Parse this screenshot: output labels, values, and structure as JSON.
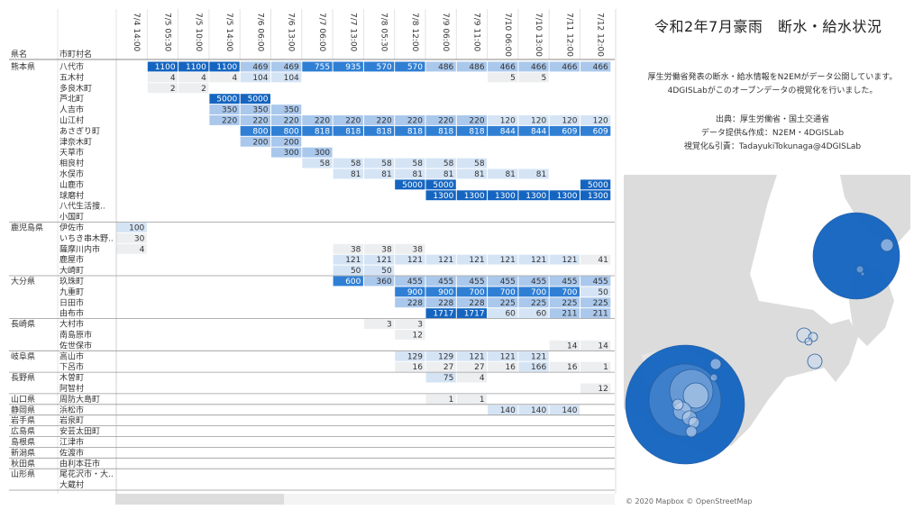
{
  "title": "令和2年7月豪雨　断水・給水状況",
  "description": [
    "厚生労働省発表の断水・給水情報をN2EMがデータ公開しています。",
    "4DGISLabがこのオープンデータの視覚化を行いました。"
  ],
  "credits": [
    "出典：厚生労働省・国土交通省",
    "データ提供&作成：N2EM・4DGISLab",
    "視覚化&引責：TadayukiTokunaga@4DGISLab"
  ],
  "map_attribution": "© 2020 Mapbox  © OpenStreetMap",
  "colors": {
    "dark": "#1565c0",
    "mid": "#2f7fd4",
    "light": "#aac8ec",
    "lighter": "#d5e4f5",
    "lightest": "#eceef0",
    "ocean": "#ffffff",
    "land": "#dcdcdc",
    "bubble": "#1565c0"
  },
  "chart_data": {
    "type": "table",
    "row_header": "県名",
    "col_header": "市町村名",
    "columns": [
      "7/4 14:00",
      "7/5 05:30",
      "7/5 10:00",
      "7/5 14:00",
      "7/6 06:00",
      "7/6 13:00",
      "7/7 06:00",
      "7/7 13:00",
      "7/8 05:30",
      "7/8 12:00",
      "7/9 06:00",
      "7/9 11:00",
      "7/10 06:00",
      "7/10 13:00",
      "7/11 12:00",
      "7/12 12:00"
    ],
    "groups": [
      {
        "pref": "熊本県",
        "rows": [
          {
            "name": "八代市",
            "v": [
              null,
              1100,
              1100,
              1100,
              469,
              469,
              755,
              935,
              570,
              570,
              486,
              486,
              466,
              466,
              466,
              466
            ]
          },
          {
            "name": "五木村",
            "v": [
              null,
              4,
              4,
              4,
              104,
              104,
              null,
              null,
              null,
              null,
              null,
              null,
              5,
              5,
              null,
              null
            ]
          },
          {
            "name": "多良木町",
            "v": [
              null,
              2,
              2,
              null,
              null,
              null,
              null,
              null,
              null,
              null,
              null,
              null,
              null,
              null,
              null,
              null
            ]
          },
          {
            "name": "芦北町",
            "v": [
              null,
              null,
              null,
              5000,
              5000,
              null,
              null,
              null,
              null,
              null,
              null,
              null,
              null,
              null,
              null,
              null
            ]
          },
          {
            "name": "人吉市",
            "v": [
              null,
              null,
              null,
              350,
              350,
              350,
              null,
              null,
              null,
              null,
              null,
              null,
              null,
              null,
              null,
              null
            ]
          },
          {
            "name": "山江村",
            "v": [
              null,
              null,
              null,
              220,
              220,
              220,
              220,
              220,
              220,
              220,
              220,
              220,
              120,
              120,
              120,
              120
            ]
          },
          {
            "name": "あさぎり町",
            "v": [
              null,
              null,
              null,
              null,
              800,
              800,
              818,
              818,
              818,
              818,
              818,
              818,
              844,
              844,
              609,
              609
            ]
          },
          {
            "name": "津奈木町",
            "v": [
              null,
              null,
              null,
              null,
              200,
              200,
              null,
              null,
              null,
              null,
              null,
              null,
              null,
              null,
              null,
              null
            ]
          },
          {
            "name": "天草市",
            "v": [
              null,
              null,
              null,
              null,
              null,
              300,
              300,
              null,
              null,
              null,
              null,
              null,
              null,
              null,
              null,
              null
            ]
          },
          {
            "name": "相良村",
            "v": [
              null,
              null,
              null,
              null,
              null,
              null,
              58,
              58,
              58,
              58,
              58,
              58,
              null,
              null,
              null,
              null
            ]
          },
          {
            "name": "水俣市",
            "v": [
              null,
              null,
              null,
              null,
              null,
              null,
              null,
              81,
              81,
              81,
              81,
              81,
              81,
              81,
              null,
              null
            ]
          },
          {
            "name": "山鹿市",
            "v": [
              null,
              null,
              null,
              null,
              null,
              null,
              null,
              null,
              null,
              5000,
              5000,
              null,
              null,
              null,
              null,
              5000
            ]
          },
          {
            "name": "球磨村",
            "v": [
              null,
              null,
              null,
              null,
              null,
              null,
              null,
              null,
              null,
              null,
              1300,
              1300,
              1300,
              1300,
              1300,
              1300
            ]
          },
          {
            "name": "八代生活捜..",
            "v": [
              null,
              null,
              null,
              null,
              null,
              null,
              null,
              null,
              null,
              null,
              null,
              null,
              null,
              null,
              null,
              null
            ]
          },
          {
            "name": "小国町",
            "v": [
              null,
              null,
              null,
              null,
              null,
              null,
              null,
              null,
              null,
              null,
              null,
              null,
              null,
              null,
              null,
              null
            ]
          }
        ]
      },
      {
        "pref": "鹿児島県",
        "rows": [
          {
            "name": "伊佐市",
            "v": [
              100,
              null,
              null,
              null,
              null,
              null,
              null,
              null,
              null,
              null,
              null,
              null,
              null,
              null,
              null,
              null
            ]
          },
          {
            "name": "いちき串木野..",
            "v": [
              30,
              null,
              null,
              null,
              null,
              null,
              null,
              null,
              null,
              null,
              null,
              null,
              null,
              null,
              null,
              null
            ]
          },
          {
            "name": "薩摩川内市",
            "v": [
              4,
              null,
              null,
              null,
              null,
              null,
              null,
              38,
              38,
              38,
              null,
              null,
              null,
              null,
              null,
              null
            ]
          },
          {
            "name": "鹿屋市",
            "v": [
              null,
              null,
              null,
              null,
              null,
              null,
              null,
              121,
              121,
              121,
              121,
              121,
              121,
              121,
              121,
              41
            ]
          },
          {
            "name": "大崎町",
            "v": [
              null,
              null,
              null,
              null,
              null,
              null,
              null,
              50,
              50,
              null,
              null,
              null,
              null,
              null,
              null,
              null
            ]
          }
        ]
      },
      {
        "pref": "大分県",
        "rows": [
          {
            "name": "玖珠町",
            "v": [
              null,
              null,
              null,
              null,
              null,
              null,
              null,
              600,
              360,
              455,
              455,
              455,
              455,
              455,
              455,
              455
            ]
          },
          {
            "name": "九重町",
            "v": [
              null,
              null,
              null,
              null,
              null,
              null,
              null,
              null,
              null,
              900,
              900,
              700,
              700,
              700,
              700,
              50
            ]
          },
          {
            "name": "日田市",
            "v": [
              null,
              null,
              null,
              null,
              null,
              null,
              null,
              null,
              null,
              228,
              228,
              228,
              225,
              225,
              225,
              225
            ]
          },
          {
            "name": "由布市",
            "v": [
              null,
              null,
              null,
              null,
              null,
              null,
              null,
              null,
              null,
              null,
              1717,
              1717,
              60,
              60,
              211,
              211
            ]
          }
        ]
      },
      {
        "pref": "長崎県",
        "rows": [
          {
            "name": "大村市",
            "v": [
              null,
              null,
              null,
              null,
              null,
              null,
              null,
              null,
              3,
              3,
              null,
              null,
              null,
              null,
              null,
              null
            ]
          },
          {
            "name": "南島原市",
            "v": [
              null,
              null,
              null,
              null,
              null,
              null,
              null,
              null,
              null,
              12,
              null,
              null,
              null,
              null,
              null,
              null
            ]
          },
          {
            "name": "佐世保市",
            "v": [
              null,
              null,
              null,
              null,
              null,
              null,
              null,
              null,
              null,
              null,
              null,
              null,
              null,
              null,
              14,
              14
            ]
          }
        ]
      },
      {
        "pref": "岐阜県",
        "rows": [
          {
            "name": "高山市",
            "v": [
              null,
              null,
              null,
              null,
              null,
              null,
              null,
              null,
              null,
              129,
              129,
              121,
              121,
              121,
              null,
              null
            ]
          },
          {
            "name": "下呂市",
            "v": [
              null,
              null,
              null,
              null,
              null,
              null,
              null,
              null,
              null,
              16,
              27,
              27,
              16,
              166,
              16,
              1
            ]
          }
        ]
      },
      {
        "pref": "長野県",
        "rows": [
          {
            "name": "木曽町",
            "v": [
              null,
              null,
              null,
              null,
              null,
              null,
              null,
              null,
              null,
              null,
              75,
              4,
              null,
              null,
              null,
              null
            ]
          },
          {
            "name": "阿智村",
            "v": [
              null,
              null,
              null,
              null,
              null,
              null,
              null,
              null,
              null,
              null,
              null,
              null,
              null,
              null,
              null,
              12
            ]
          }
        ]
      },
      {
        "pref": "山口県",
        "rows": [
          {
            "name": "周防大島町",
            "v": [
              null,
              null,
              null,
              null,
              null,
              null,
              null,
              null,
              null,
              null,
              1,
              1,
              null,
              null,
              null,
              null
            ]
          }
        ]
      },
      {
        "pref": "静岡県",
        "rows": [
          {
            "name": "浜松市",
            "v": [
              null,
              null,
              null,
              null,
              null,
              null,
              null,
              null,
              null,
              null,
              null,
              null,
              140,
              140,
              140,
              null
            ]
          }
        ]
      },
      {
        "pref": "岩手県",
        "rows": [
          {
            "name": "岩泉町",
            "v": [
              null,
              null,
              null,
              null,
              null,
              null,
              null,
              null,
              null,
              null,
              null,
              null,
              null,
              null,
              null,
              null
            ]
          }
        ]
      },
      {
        "pref": "広島県",
        "rows": [
          {
            "name": "安芸太田町",
            "v": [
              null,
              null,
              null,
              null,
              null,
              null,
              null,
              null,
              null,
              null,
              null,
              null,
              null,
              null,
              null,
              null
            ]
          }
        ]
      },
      {
        "pref": "島根県",
        "rows": [
          {
            "name": "江津市",
            "v": [
              null,
              null,
              null,
              null,
              null,
              null,
              null,
              null,
              null,
              null,
              null,
              null,
              null,
              null,
              null,
              null
            ]
          }
        ]
      },
      {
        "pref": "新潟県",
        "rows": [
          {
            "name": "佐渡市",
            "v": [
              null,
              null,
              null,
              null,
              null,
              null,
              null,
              null,
              null,
              null,
              null,
              null,
              null,
              null,
              null,
              null
            ]
          }
        ]
      },
      {
        "pref": "秋田県",
        "rows": [
          {
            "name": "由利本荘市",
            "v": [
              null,
              null,
              null,
              null,
              null,
              null,
              null,
              null,
              null,
              null,
              null,
              null,
              null,
              null,
              null,
              null
            ]
          }
        ]
      },
      {
        "pref": "山形県",
        "rows": [
          {
            "name": "尾花沢市・大..",
            "v": [
              null,
              null,
              null,
              null,
              null,
              null,
              null,
              null,
              null,
              null,
              null,
              null,
              null,
              null,
              null,
              null
            ]
          },
          {
            "name": "大蔵村",
            "v": [
              null,
              null,
              null,
              null,
              null,
              null,
              null,
              null,
              null,
              null,
              null,
              null,
              null,
              null,
              null,
              null
            ]
          }
        ]
      }
    ]
  }
}
